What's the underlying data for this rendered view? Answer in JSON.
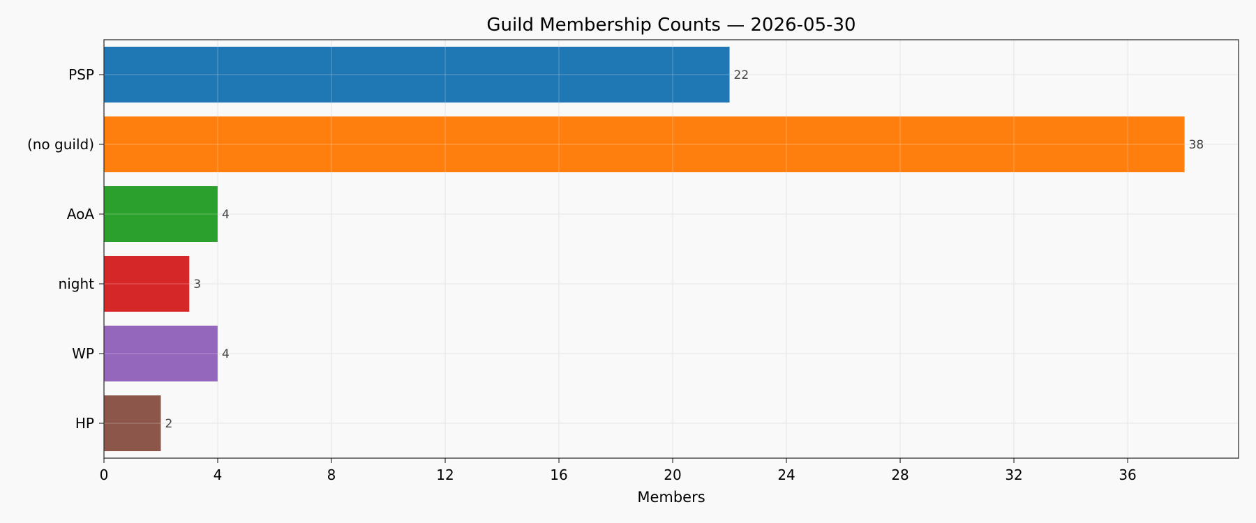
{
  "chart_data": {
    "type": "bar",
    "orientation": "horizontal",
    "title": "Guild Membership Counts — 2026-05-30",
    "xlabel": "Members",
    "ylabel": "",
    "categories": [
      "PSP",
      "(no guild)",
      "AoA",
      "night",
      "WP",
      "HP"
    ],
    "values": [
      22,
      38,
      4,
      3,
      4,
      2
    ],
    "colors": [
      "#1f77b4",
      "#ff7f0e",
      "#2ca02c",
      "#d62728",
      "#9467bd",
      "#8c564b"
    ],
    "xlim": [
      0,
      39.9
    ],
    "xticks": [
      0,
      4,
      8,
      12,
      16,
      20,
      24,
      28,
      32,
      36
    ],
    "grid": true,
    "legend": "none"
  }
}
